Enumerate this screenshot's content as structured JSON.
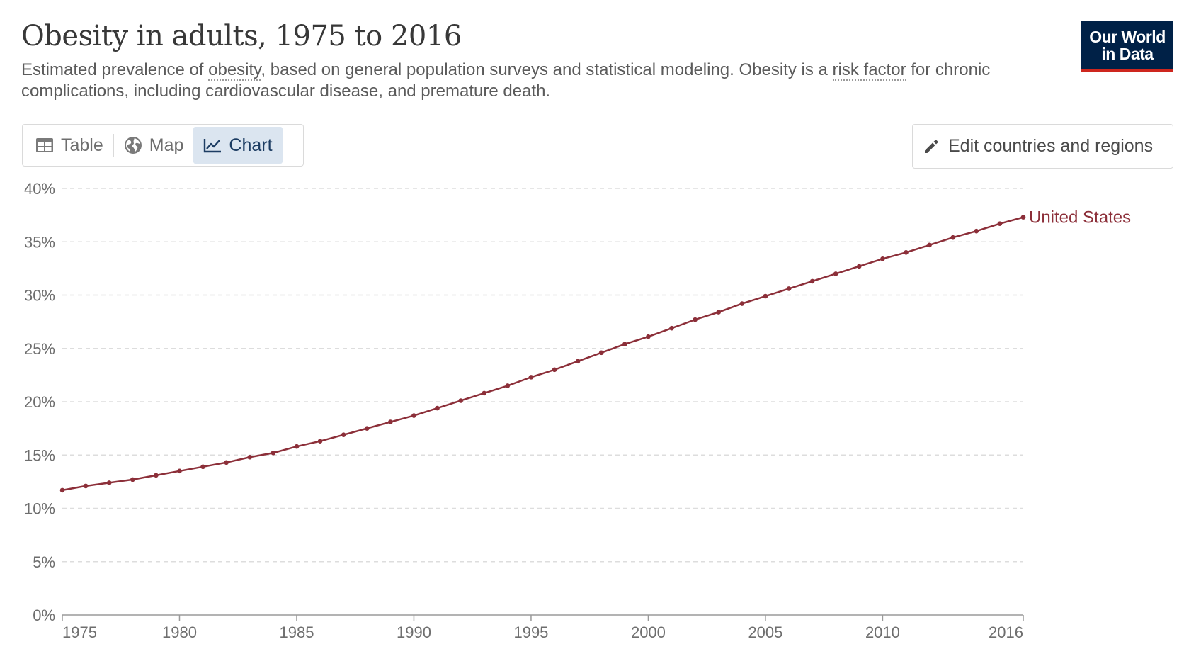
{
  "header": {
    "title": "Obesity in adults, 1975 to 2016",
    "subtitle_pre": "Estimated prevalence of ",
    "subtitle_term1": "obesity",
    "subtitle_mid": ", based on general population surveys and statistical modeling. Obesity is a ",
    "subtitle_term2": "risk factor",
    "subtitle_post": " for chronic complications, including cardiovascular disease, and premature death."
  },
  "logo": {
    "line1": "Our World",
    "line2": "in Data"
  },
  "tabs": [
    {
      "label": "Table",
      "icon": "table-icon"
    },
    {
      "label": "Map",
      "icon": "globe-icon"
    },
    {
      "label": "Chart",
      "icon": "line-chart-icon",
      "active": true
    }
  ],
  "edit_button": {
    "label": "Edit countries and regions",
    "icon": "pencil-icon"
  },
  "colors": {
    "series": "#8c2f39",
    "grid": "#dddddd",
    "axis": "#6e6e6e",
    "logo_bg": "#002147",
    "logo_accent": "#ce261e",
    "active_tab_bg": "#dbe5f0"
  },
  "chart_data": {
    "type": "line",
    "title": "Obesity in adults, 1975 to 2016",
    "xlabel": "",
    "ylabel": "",
    "xlim": [
      1975,
      2016
    ],
    "ylim": [
      0,
      40
    ],
    "y_ticks": [
      0,
      5,
      10,
      15,
      20,
      25,
      30,
      35,
      40
    ],
    "y_tick_labels": [
      "0%",
      "5%",
      "10%",
      "15%",
      "20%",
      "25%",
      "30%",
      "35%",
      "40%"
    ],
    "x_ticks": [
      1975,
      1980,
      1985,
      1990,
      1995,
      2000,
      2005,
      2010,
      2016
    ],
    "x_tick_labels": [
      "1975",
      "1980",
      "1985",
      "1990",
      "1995",
      "2000",
      "2005",
      "2010",
      "2016"
    ],
    "grid": "horizontal-dashed",
    "series": [
      {
        "name": "United States",
        "label": "United States",
        "color": "#8c2f39",
        "x": [
          1975,
          1976,
          1977,
          1978,
          1979,
          1980,
          1981,
          1982,
          1983,
          1984,
          1985,
          1986,
          1987,
          1988,
          1989,
          1990,
          1991,
          1992,
          1993,
          1994,
          1995,
          1996,
          1997,
          1998,
          1999,
          2000,
          2001,
          2002,
          2003,
          2004,
          2005,
          2006,
          2007,
          2008,
          2009,
          2010,
          2011,
          2012,
          2013,
          2014,
          2015,
          2016
        ],
        "values": [
          11.7,
          12.1,
          12.4,
          12.7,
          13.1,
          13.5,
          13.9,
          14.3,
          14.8,
          15.2,
          15.8,
          16.3,
          16.9,
          17.5,
          18.1,
          18.7,
          19.4,
          20.1,
          20.8,
          21.5,
          22.3,
          23.0,
          23.8,
          24.6,
          25.4,
          26.1,
          26.9,
          27.7,
          28.4,
          29.2,
          29.9,
          30.6,
          31.3,
          32.0,
          32.7,
          33.4,
          34.0,
          34.7,
          35.4,
          36.0,
          36.7,
          37.3
        ]
      }
    ]
  }
}
